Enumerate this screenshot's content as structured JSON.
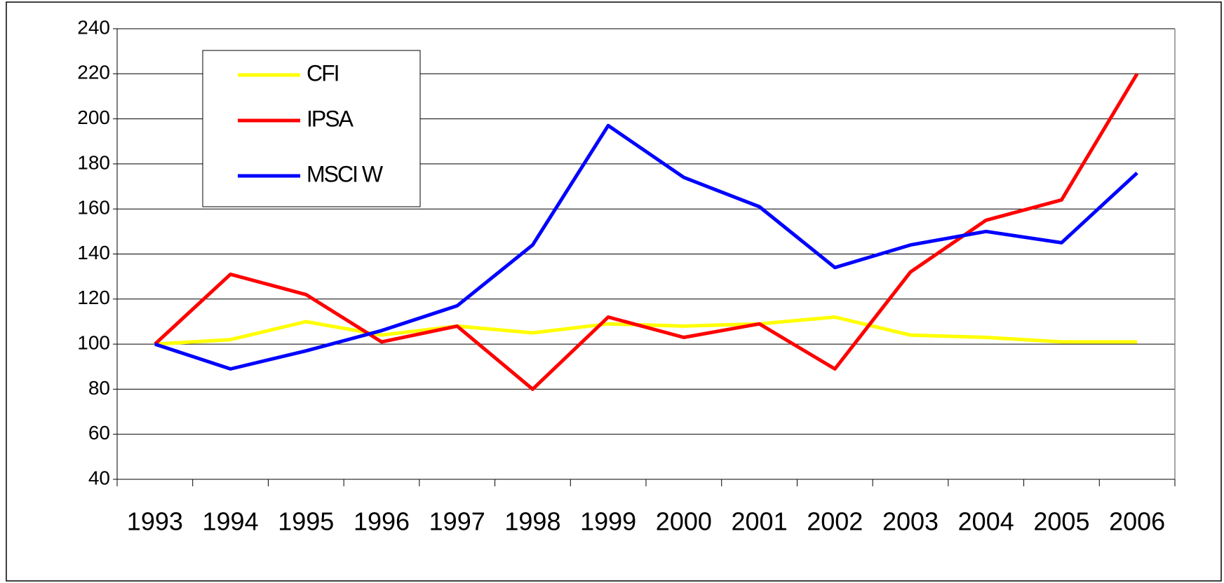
{
  "chart_data": {
    "type": "line",
    "categories": [
      "1993",
      "1994",
      "1995",
      "1996",
      "1997",
      "1998",
      "1999",
      "2000",
      "2001",
      "2002",
      "2003",
      "2004",
      "2005",
      "2006"
    ],
    "series": [
      {
        "name": "CFI",
        "color": "#ffff00",
        "values": [
          100,
          102,
          110,
          104,
          108,
          105,
          109,
          108,
          109,
          112,
          104,
          103,
          101,
          101
        ]
      },
      {
        "name": "IPSA",
        "color": "#ff0000",
        "values": [
          100,
          131,
          122,
          101,
          108,
          80,
          112,
          103,
          109,
          89,
          132,
          155,
          164,
          220
        ]
      },
      {
        "name": "MSCI W",
        "color": "#0000ff",
        "values": [
          100,
          89,
          97,
          106,
          117,
          144,
          197,
          174,
          161,
          134,
          144,
          150,
          145,
          176
        ]
      }
    ],
    "ylim": [
      40,
      240
    ],
    "yticks": [
      40,
      60,
      80,
      100,
      120,
      140,
      160,
      180,
      200,
      220,
      240
    ],
    "grid": true
  }
}
